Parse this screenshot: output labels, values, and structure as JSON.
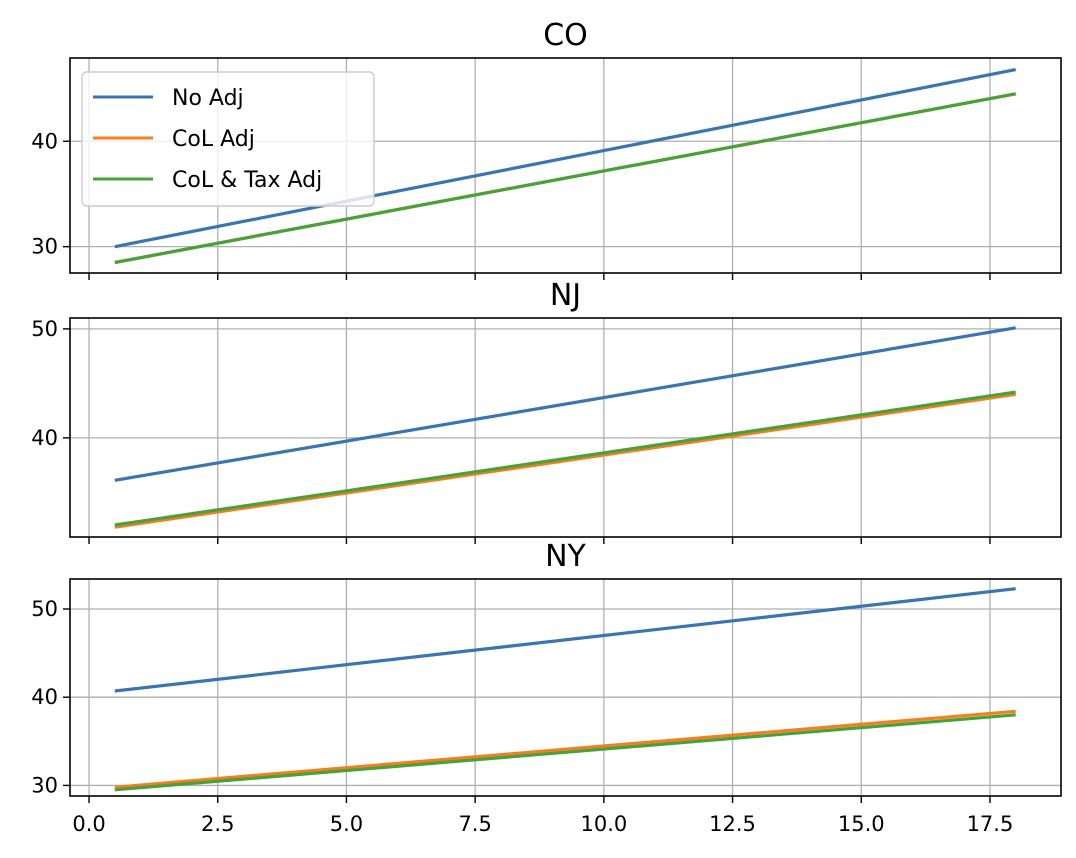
{
  "chart_data": [
    {
      "type": "line",
      "title": "CO",
      "xlim": [
        -0.37,
        18.88
      ],
      "ylim": [
        27.5,
        47.9
      ],
      "xticks": [
        0.0,
        2.5,
        5.0,
        7.5,
        10.0,
        12.5,
        15.0,
        17.5
      ],
      "xticklabels": [],
      "yticks": [
        30,
        40
      ],
      "yticklabels": [
        "30",
        "40"
      ],
      "grid": true,
      "legend": {
        "placement": "upper-left"
      },
      "series": [
        {
          "name": "No Adj",
          "color": "#3a75b0",
          "x": [
            0.5,
            18.0
          ],
          "y": [
            30.0,
            46.8
          ]
        },
        {
          "name": "CoL Adj",
          "color": "#f47f20",
          "x": [
            0.5,
            18.0
          ],
          "y": [
            28.5,
            44.5
          ]
        },
        {
          "name": "CoL & Tax Adj",
          "color": "#49a13a",
          "x": [
            0.5,
            18.0
          ],
          "y": [
            28.5,
            44.5
          ]
        }
      ]
    },
    {
      "type": "line",
      "title": "NJ",
      "xlim": [
        -0.37,
        18.88
      ],
      "ylim": [
        30.9,
        51.0
      ],
      "xticks": [
        0.0,
        2.5,
        5.0,
        7.5,
        10.0,
        12.5,
        15.0,
        17.5
      ],
      "xticklabels": [],
      "yticks": [
        40,
        50
      ],
      "yticklabels": [
        "40",
        "50"
      ],
      "grid": true,
      "series": [
        {
          "name": "No Adj",
          "color": "#3a75b0",
          "x": [
            0.5,
            18.0
          ],
          "y": [
            36.1,
            50.1
          ]
        },
        {
          "name": "CoL Adj",
          "color": "#f47f20",
          "x": [
            0.5,
            18.0
          ],
          "y": [
            31.8,
            44.0
          ]
        },
        {
          "name": "CoL & Tax Adj",
          "color": "#49a13a",
          "x": [
            0.5,
            18.0
          ],
          "y": [
            32.0,
            44.2
          ]
        }
      ]
    },
    {
      "type": "line",
      "title": "NY",
      "xlim": [
        -0.37,
        18.88
      ],
      "ylim": [
        28.8,
        53.4
      ],
      "xticks": [
        0.0,
        2.5,
        5.0,
        7.5,
        10.0,
        12.5,
        15.0,
        17.5
      ],
      "xticklabels": [
        "0.0",
        "2.5",
        "5.0",
        "7.5",
        "10.0",
        "12.5",
        "15.0",
        "17.5"
      ],
      "yticks": [
        30,
        40,
        50
      ],
      "yticklabels": [
        "30",
        "40",
        "50"
      ],
      "grid": true,
      "series": [
        {
          "name": "No Adj",
          "color": "#3a75b0",
          "x": [
            0.5,
            18.0
          ],
          "y": [
            40.7,
            52.3
          ]
        },
        {
          "name": "CoL Adj",
          "color": "#f47f20",
          "x": [
            0.5,
            18.0
          ],
          "y": [
            29.8,
            38.4
          ]
        },
        {
          "name": "CoL & Tax Adj",
          "color": "#49a13a",
          "x": [
            0.5,
            18.0
          ],
          "y": [
            29.5,
            38.0
          ]
        }
      ]
    }
  ]
}
